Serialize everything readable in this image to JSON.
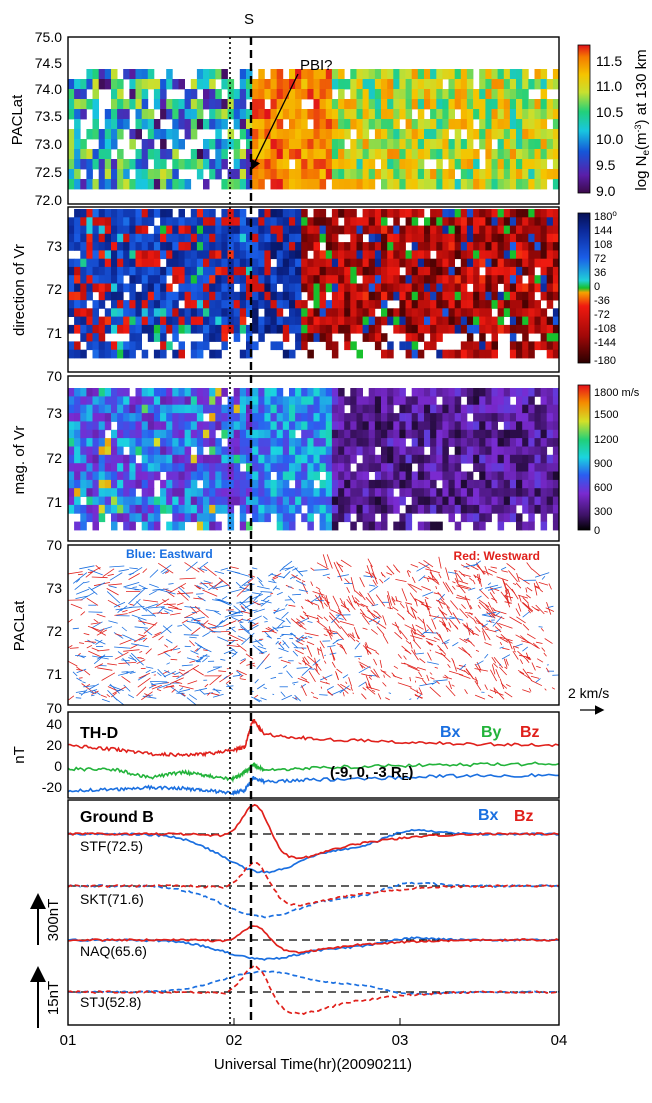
{
  "figure": {
    "event_marker": "S",
    "pbi_label": "PBI?",
    "x_axis": {
      "label": "Universal Time(hr)(20090211)",
      "ticks": [
        "01",
        "02",
        "03",
        "04"
      ],
      "range": [
        1.0,
        4.0
      ]
    }
  },
  "colors": {
    "bx": "#1a6fe0",
    "by": "#22b33a",
    "bz": "#e0201b"
  },
  "chart_data": [
    {
      "type": "heatmap",
      "panel": "density",
      "ylabel": "PACLat",
      "yticks": [
        "75.0",
        "74.5",
        "74.0",
        "73.5",
        "73.0",
        "72.5",
        "72.0"
      ],
      "ylim": [
        72.0,
        75.0
      ],
      "colorbar": {
        "label": "log Ne(m-3) at 130 km",
        "label_main": "log N",
        "label_sub": "e",
        "label_rest": "(m",
        "label_sup": "-3",
        "label_end": ") at 130 km",
        "ticks": [
          "11.5",
          "11.0",
          "10.5",
          "10.0",
          "9.5",
          "9.0"
        ],
        "range": [
          9.0,
          11.8
        ]
      }
    },
    {
      "type": "heatmap",
      "panel": "direction",
      "ylabel": "direction of Vr",
      "yticks": [
        "73",
        "72",
        "71",
        "70"
      ],
      "ylim": [
        70.0,
        73.6
      ],
      "colorbar": {
        "ticks": [
          "180",
          "144",
          "108",
          "72",
          "36",
          "0",
          "-36",
          "-72",
          "-108",
          "-144",
          "-180"
        ],
        "top_unit": "o",
        "range": [
          -180,
          180
        ]
      }
    },
    {
      "type": "heatmap",
      "panel": "magnitude",
      "ylabel": "mag. of Vr",
      "yticks": [
        "73",
        "72",
        "71",
        "70"
      ],
      "ylim": [
        70.0,
        73.6
      ],
      "colorbar": {
        "ticks": [
          "1800 m/s",
          "1500",
          "1200",
          "900",
          "600",
          "300",
          "0"
        ],
        "range": [
          0,
          1800
        ]
      }
    },
    {
      "type": "scatter",
      "panel": "vectors",
      "ylabel": "PACLat",
      "yticks": [
        "73",
        "72",
        "71",
        "70"
      ],
      "ylim": [
        70.0,
        73.6
      ],
      "legend_blue": "Blue: Eastward",
      "legend_red": "Red: Westward",
      "scale_label": "2 km/s"
    },
    {
      "type": "line",
      "panel": "themis",
      "title": "TH-D",
      "ylabel": "nT",
      "yticks": [
        "40",
        "20",
        "0",
        "-20"
      ],
      "ylim": [
        -28,
        48
      ],
      "position_label": "(-9, 0, -3 R",
      "position_sub": "E",
      "position_end": ")",
      "series": [
        {
          "name": "Bx",
          "x": [
            1.0,
            1.3,
            1.5,
            1.7,
            1.85,
            2.0,
            2.08,
            2.13,
            2.2,
            2.5,
            3.0,
            3.5,
            4.0
          ],
          "values": [
            -22,
            -21,
            -19,
            -20,
            -22,
            -24,
            -22,
            -10,
            -14,
            -12,
            -10,
            -8,
            -8
          ]
        },
        {
          "name": "By",
          "x": [
            1.0,
            1.3,
            1.5,
            1.7,
            1.85,
            2.0,
            2.08,
            2.13,
            2.2,
            2.5,
            3.0,
            3.5,
            4.0
          ],
          "values": [
            -2,
            -3,
            -10,
            -5,
            -8,
            -12,
            -5,
            2,
            -3,
            -1,
            1,
            2,
            3
          ]
        },
        {
          "name": "Bz",
          "x": [
            1.0,
            1.3,
            1.5,
            1.7,
            1.85,
            2.0,
            2.08,
            2.13,
            2.2,
            2.5,
            3.0,
            3.5,
            4.0
          ],
          "values": [
            20,
            16,
            12,
            11,
            12,
            15,
            18,
            44,
            30,
            26,
            23,
            21,
            20
          ]
        }
      ]
    },
    {
      "type": "line",
      "panel": "ground",
      "title": "Ground B",
      "scale_labels": [
        "300nT",
        "15nT"
      ],
      "stations": [
        {
          "name": "STF(72.5)",
          "style": "solid"
        },
        {
          "name": "SKT(71.6)",
          "style": "dashed"
        },
        {
          "name": "NAQ(65.6)",
          "style": "solid"
        },
        {
          "name": "STJ(52.8)",
          "style": "dashed"
        }
      ],
      "series": [
        {
          "name": "Bx"
        },
        {
          "name": "Bz"
        }
      ]
    }
  ]
}
